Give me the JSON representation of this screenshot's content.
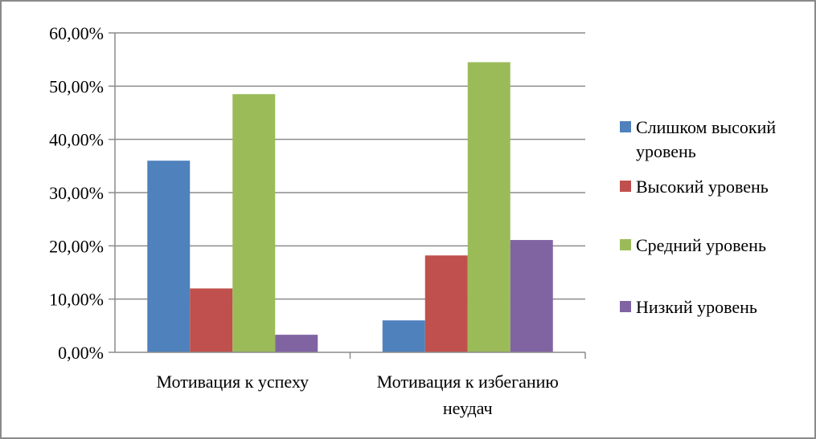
{
  "chart_data": {
    "type": "bar",
    "categories": [
      [
        "Мотивация к успеху"
      ],
      [
        "Мотивация к избеганию",
        "неудач"
      ]
    ],
    "series": [
      {
        "name": [
          "Слишком высокий",
          "уровень"
        ],
        "color": "#4f81bd",
        "values": [
          36.0,
          6.0
        ]
      },
      {
        "name": [
          "Высокий уровень"
        ],
        "color": "#c0504d",
        "values": [
          12.0,
          18.2
        ]
      },
      {
        "name": [
          "Средний уровень"
        ],
        "color": "#9bbb59",
        "values": [
          48.5,
          54.5
        ]
      },
      {
        "name": [
          "Низкий уровень"
        ],
        "color": "#8064a2",
        "values": [
          3.3,
          21.1
        ]
      }
    ],
    "yticks": [
      "0,00%",
      "10,00%",
      "20,00%",
      "30,00%",
      "40,00%",
      "50,00%",
      "60,00%"
    ],
    "ylim": [
      0,
      60
    ],
    "grid": true,
    "legend": "right"
  }
}
